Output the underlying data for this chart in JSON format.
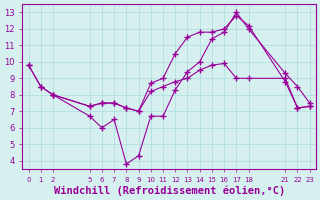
{
  "bg_color": "#d6f0f0",
  "line_color": "#990099",
  "grid_color": "#aadddd",
  "xlabel": "Windchill (Refroidissement éolien,°C)",
  "xlabel_fontsize": 7.5,
  "ylim": [
    3.5,
    13.5
  ],
  "xlim": [
    -0.5,
    23.5
  ],
  "xtick_positions": [
    0,
    1,
    2,
    5,
    6,
    7,
    8,
    9,
    10,
    11,
    12,
    13,
    14,
    15,
    16,
    17,
    18,
    21,
    22,
    23
  ],
  "xtick_labels": [
    "0",
    "1",
    "2",
    "5",
    "6",
    "7",
    "8",
    "9",
    "10",
    "11",
    "12",
    "13",
    "14",
    "15",
    "16",
    "17",
    "18",
    "21",
    "22",
    "23"
  ],
  "ytick_positions": [
    4,
    5,
    6,
    7,
    8,
    9,
    10,
    11,
    12,
    13
  ],
  "ytick_labels": [
    "4",
    "5",
    "6",
    "7",
    "8",
    "9",
    "10",
    "11",
    "12",
    "13"
  ],
  "series1_x": [
    0,
    1,
    2,
    5,
    6,
    7,
    8,
    9,
    10,
    11,
    12,
    13,
    14,
    15,
    16,
    17,
    18,
    21,
    22,
    23
  ],
  "series1_y": [
    9.8,
    8.5,
    8.0,
    6.7,
    6.0,
    6.5,
    3.8,
    4.3,
    6.7,
    6.7,
    8.3,
    9.4,
    10.0,
    11.4,
    11.8,
    13.0,
    12.0,
    9.3,
    8.5,
    7.5
  ],
  "series2_x": [
    0,
    1,
    2,
    5,
    6,
    7,
    8,
    9,
    10,
    11,
    12,
    13,
    14,
    15,
    16,
    17,
    18,
    21,
    22,
    23
  ],
  "series2_y": [
    9.8,
    8.5,
    8.0,
    7.3,
    7.5,
    7.5,
    7.2,
    7.0,
    8.2,
    8.5,
    8.8,
    9.0,
    9.5,
    9.8,
    9.9,
    9.0,
    9.0,
    9.0,
    7.2,
    7.3
  ],
  "series3_x": [
    2,
    5,
    6,
    7,
    8,
    9,
    10,
    11,
    12,
    13,
    14,
    15,
    16,
    17,
    18,
    21,
    22,
    23
  ],
  "series3_y": [
    8.0,
    7.3,
    7.5,
    7.5,
    7.2,
    7.0,
    8.7,
    9.0,
    10.5,
    11.5,
    11.8,
    11.8,
    12.0,
    12.8,
    12.2,
    8.8,
    7.2,
    7.3
  ]
}
